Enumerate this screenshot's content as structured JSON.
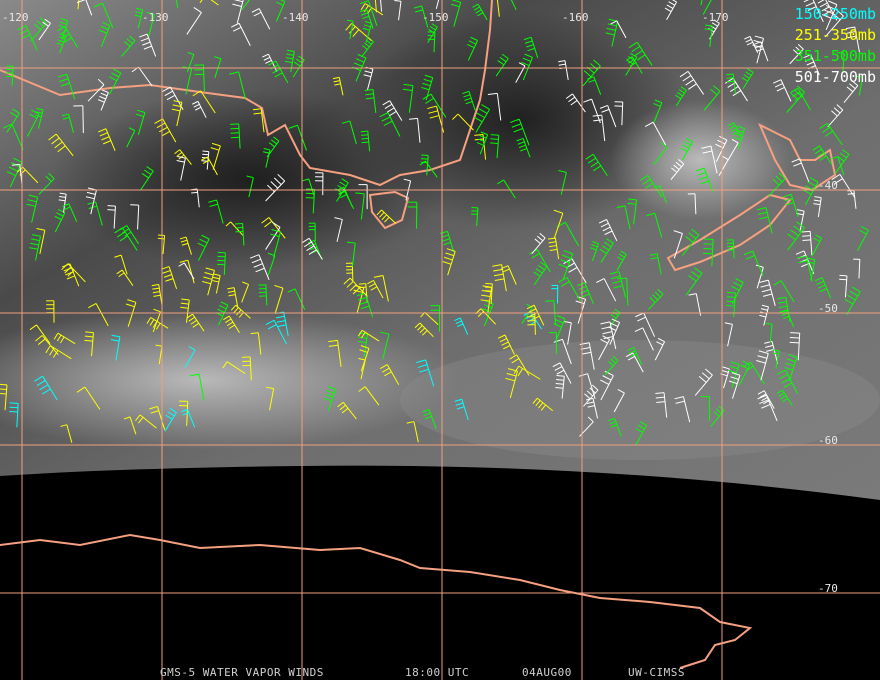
{
  "map": {
    "longitude_labels": [
      "-120",
      "-130",
      "-140",
      "-150",
      "-160",
      "-170"
    ],
    "latitude_labels": [
      "-40",
      "-50",
      "-60",
      "-70"
    ],
    "legend": [
      {
        "name": "150-250mb",
        "color": "#00ffff"
      },
      {
        "name": "251-350mb",
        "color": "#ffff00"
      },
      {
        "name": "351-500mb",
        "color": "#00ff00"
      },
      {
        "name": "501-700mb",
        "color": "#ffffff"
      }
    ],
    "footer": {
      "product": "GMS-5 WATER VAPOR WINDS",
      "time": "18:00 UTC",
      "date": "04AUG00",
      "source": "UW-CIMSS"
    }
  }
}
